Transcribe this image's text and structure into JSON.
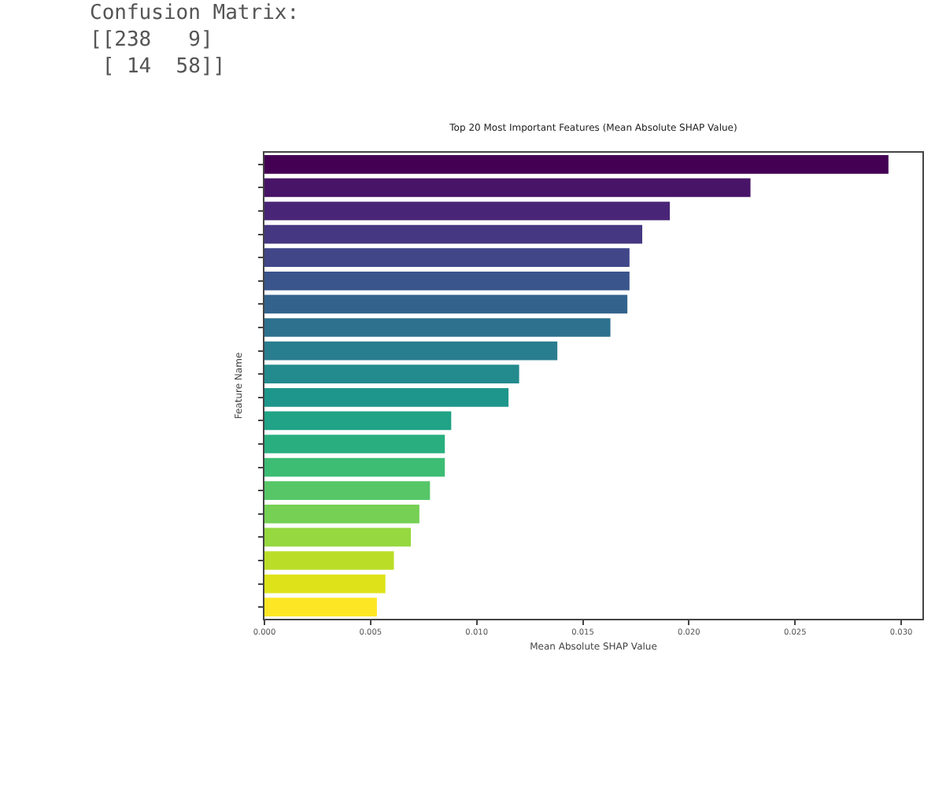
{
  "chart_data": {
    "type": "bar",
    "orientation": "horizontal",
    "title": "Top 20 Most Important Features (Mean Absolute SHAP Value)",
    "xlabel": "Mean Absolute SHAP Value",
    "ylabel": "Feature Name",
    "annotations": [
      "Confusion Matrix:\n[[238   9]\n [ 14  58]]"
    ],
    "categories": [
      null,
      null,
      null,
      null,
      null,
      null,
      null,
      null,
      null,
      null,
      null,
      null,
      null,
      null,
      null,
      null,
      null,
      null,
      null,
      null
    ],
    "values": [
      0.0294,
      0.0229,
      0.0191,
      0.0178,
      0.0172,
      0.0172,
      0.0171,
      0.0163,
      0.0138,
      0.012,
      0.0115,
      0.0088,
      0.0085,
      0.0085,
      0.0078,
      0.0073,
      0.0069,
      0.0061,
      0.0057,
      0.0053
    ],
    "colors": [
      "#440154",
      "#481467",
      "#482576",
      "#453781",
      "#404688",
      "#39558c",
      "#33638d",
      "#2d718e",
      "#287d8e",
      "#238a8d",
      "#1f968b",
      "#20a386",
      "#29af7f",
      "#3dbc74",
      "#56c667",
      "#75d054",
      "#95d840",
      "#bade28",
      "#dde318",
      "#fde725"
    ],
    "xlim": [
      0,
      0.031
    ],
    "xticks": [
      {
        "value": 0,
        "label": "0.000"
      },
      {
        "value": 0.005,
        "label": "0.005"
      },
      {
        "value": 0.01,
        "label": "0.010"
      },
      {
        "value": 0.015,
        "label": "0.015"
      },
      {
        "value": 0.02,
        "label": "0.020"
      },
      {
        "value": 0.025,
        "label": "0.025"
      },
      {
        "value": 0.03,
        "label": "0.030"
      }
    ]
  }
}
